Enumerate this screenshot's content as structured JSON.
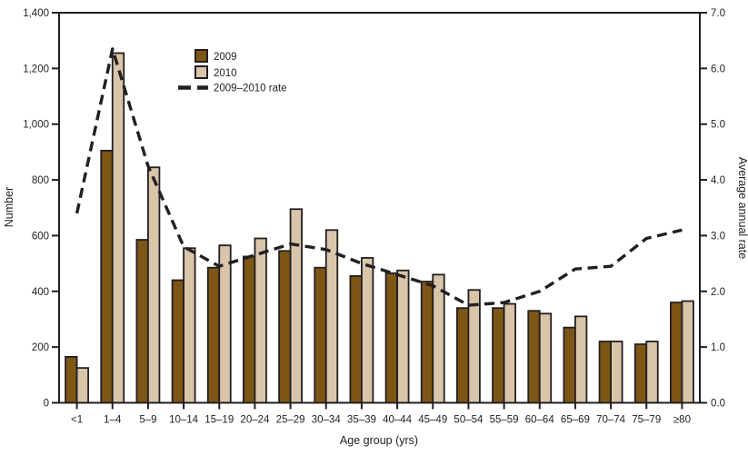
{
  "chart_data": {
    "type": "bar",
    "subtype": "grouped-bars-with-line-overlay",
    "title": "",
    "xlabel": "Age group (yrs)",
    "ylabel_left": "Number",
    "ylabel_right": "Average annual rate",
    "categories": [
      "<1",
      "1–4",
      "5–9",
      "10–14",
      "15–19",
      "20–24",
      "25–29",
      "30–34",
      "35–39",
      "40–44",
      "45–49",
      "50–54",
      "55–59",
      "60–64",
      "65–69",
      "70–74",
      "75–79",
      "≥80"
    ],
    "series": [
      {
        "name": "2009",
        "type": "bar",
        "axis": "left",
        "color": "#7d5616",
        "values": [
          165,
          905,
          585,
          440,
          485,
          525,
          545,
          485,
          455,
          465,
          435,
          340,
          340,
          330,
          270,
          220,
          210,
          360
        ]
      },
      {
        "name": "2010",
        "type": "bar",
        "axis": "left",
        "color": "#d8c5aa",
        "values": [
          125,
          1255,
          845,
          555,
          565,
          590,
          695,
          620,
          520,
          475,
          460,
          405,
          355,
          320,
          310,
          220,
          220,
          365
        ]
      },
      {
        "name": "2009–2010 rate",
        "type": "line",
        "axis": "right",
        "style": "dashed",
        "color": "#231f20",
        "values": [
          3.4,
          6.35,
          4.25,
          2.8,
          2.45,
          2.65,
          2.85,
          2.75,
          2.5,
          2.3,
          2.1,
          1.75,
          1.8,
          2.0,
          2.4,
          2.45,
          2.95,
          3.1
        ]
      }
    ],
    "y_left_axis": {
      "min": 0,
      "max": 1400,
      "step": 200,
      "tick_labels": [
        "0",
        "200",
        "400",
        "600",
        "800",
        "1,000",
        "1,200",
        "1,400"
      ]
    },
    "y_right_axis": {
      "min": 0,
      "max": 7,
      "step": 1,
      "tick_labels": [
        "0.0",
        "1.0",
        "2.0",
        "3.0",
        "4.0",
        "5.0",
        "6.0",
        "7.0"
      ]
    },
    "layout": {
      "grid": false,
      "plot_frame": "full-box",
      "legend_position": "inside-top-left"
    }
  },
  "colors": {
    "background": "#ffffff",
    "axis_and_text": "#231f20",
    "bar_outline": "#231f20",
    "bar_2009_fill": "#7d5616",
    "bar_2010_fill": "#d8c5aa",
    "rate_line": "#231f20"
  }
}
